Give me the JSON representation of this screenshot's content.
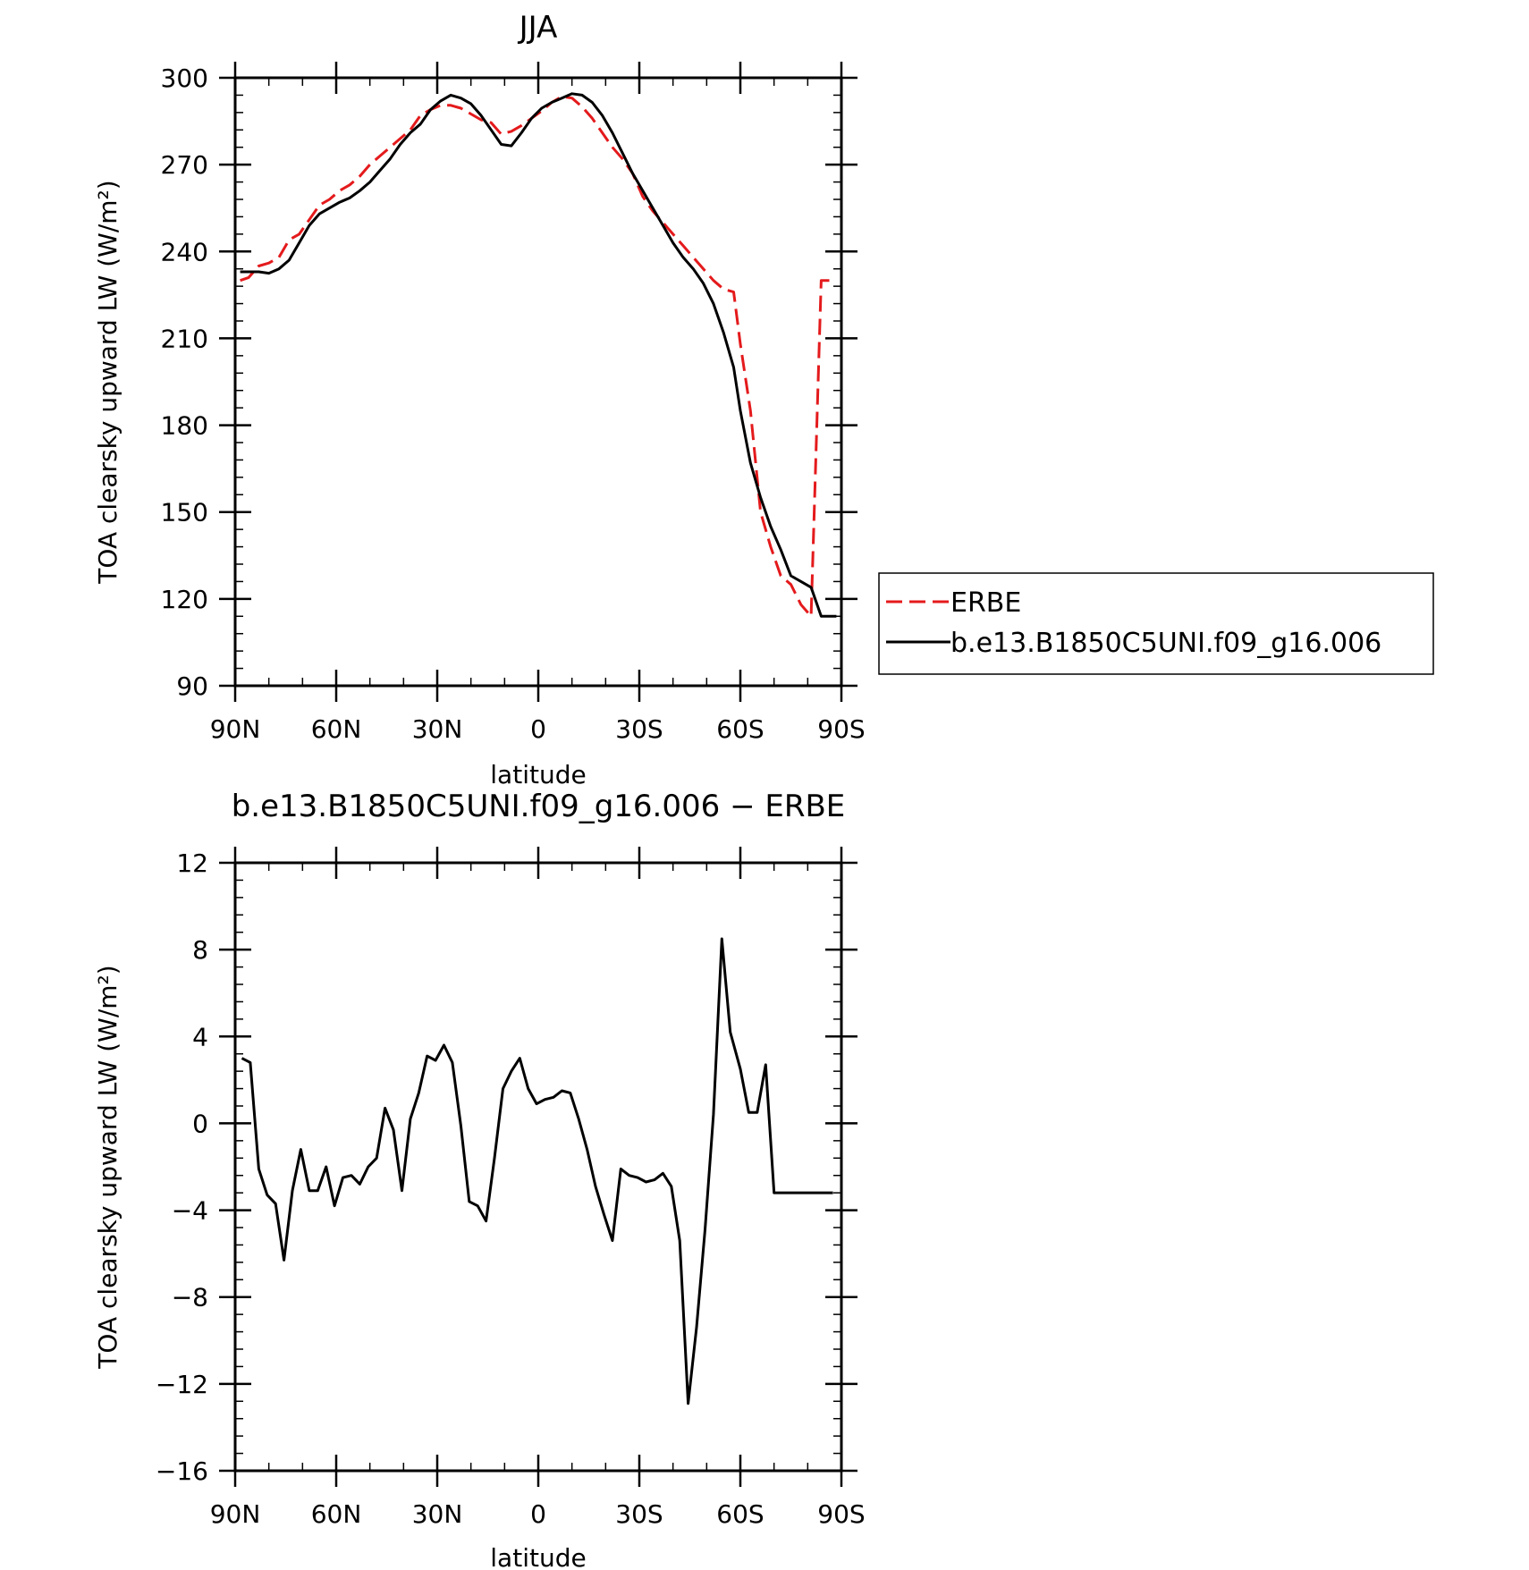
{
  "chart_data": [
    {
      "type": "line",
      "title": "JJA",
      "xlabel": "latitude",
      "ylabel": "TOA clearsky upward LW (W/m²)",
      "xlim": [
        90,
        -90
      ],
      "ylim": [
        90,
        300
      ],
      "xticks": [
        {
          "value": 90,
          "label": "90N"
        },
        {
          "value": 60,
          "label": "60N"
        },
        {
          "value": 30,
          "label": "30N"
        },
        {
          "value": 0,
          "label": "0"
        },
        {
          "value": -30,
          "label": "30S"
        },
        {
          "value": -60,
          "label": "60S"
        },
        {
          "value": -90,
          "label": "90S"
        }
      ],
      "yticks": [
        {
          "value": 300,
          "label": "300"
        },
        {
          "value": 270,
          "label": "270"
        },
        {
          "value": 240,
          "label": "240"
        },
        {
          "value": 210,
          "label": "210"
        },
        {
          "value": 180,
          "label": "180"
        },
        {
          "value": 150,
          "label": "150"
        },
        {
          "value": 120,
          "label": "120"
        },
        {
          "value": 90,
          "label": "90"
        }
      ],
      "legend": {
        "placement": "right"
      },
      "series": [
        {
          "name": "ERBE",
          "color": "#e41a1c",
          "style": "dashed",
          "x": [
            88.5,
            86,
            83,
            80,
            77,
            74,
            71,
            68,
            65,
            62,
            59,
            56,
            53,
            50,
            47,
            44,
            41,
            38,
            35,
            32,
            29,
            26,
            23,
            20,
            17,
            14,
            11,
            8,
            5,
            2,
            -1,
            -4,
            -7,
            -10,
            -13,
            -16,
            -19,
            -22,
            -25,
            -28,
            -31,
            -34,
            -37,
            -40,
            -43,
            -46,
            -49,
            -52,
            -55,
            -58,
            -60,
            -63,
            -66,
            -69,
            -72,
            -75,
            -78,
            -81,
            -84,
            -87,
            -88.5
          ],
          "y": [
            230,
            231,
            235,
            236,
            238,
            244,
            246,
            251,
            256,
            258,
            261,
            263,
            266,
            270,
            273,
            276,
            279,
            282,
            287,
            289,
            290.5,
            290.5,
            289.5,
            287.5,
            285.5,
            284.5,
            280.5,
            281.5,
            283.5,
            286,
            288.5,
            291.5,
            293.5,
            293,
            290,
            286,
            281,
            276,
            272,
            267,
            259,
            254,
            250,
            246,
            242,
            238,
            234,
            230,
            227,
            226,
            208,
            185,
            150,
            138,
            128,
            125,
            118,
            114,
            230,
            230,
            230
          ]
        },
        {
          "name": "b.e13.B1850C5UNI.f09_g16.006",
          "color": "#000000",
          "style": "solid",
          "x": [
            88.5,
            86,
            83,
            80,
            77,
            74,
            71,
            68,
            65,
            62,
            59,
            56,
            53,
            50,
            47,
            44,
            41,
            38,
            35,
            32,
            29,
            26,
            23,
            20,
            17,
            14,
            11,
            8,
            5,
            2,
            -1,
            -4,
            -7,
            -10,
            -13,
            -16,
            -19,
            -22,
            -25,
            -28,
            -31,
            -34,
            -37,
            -40,
            -43,
            -46,
            -49,
            -52,
            -55,
            -58,
            -60,
            -63,
            -66,
            -69,
            -72,
            -75,
            -78,
            -81,
            -84,
            -87,
            -88.5
          ],
          "y": [
            233,
            233,
            233,
            232.5,
            234,
            237,
            243,
            249,
            253,
            255,
            257,
            258.5,
            261,
            264,
            268,
            272,
            277,
            281,
            284,
            289,
            292,
            294,
            293,
            291,
            287,
            282,
            277,
            276.5,
            281,
            286,
            289.5,
            291.5,
            293,
            294.5,
            294,
            291.5,
            287,
            281,
            274,
            267,
            261,
            255,
            249,
            243,
            238,
            234,
            229,
            222,
            212,
            200,
            185,
            167,
            155,
            145,
            137,
            128,
            126,
            124,
            114,
            114,
            114
          ]
        }
      ]
    },
    {
      "type": "line",
      "title": "b.e13.B1850C5UNI.f09_g16.006 − ERBE",
      "xlabel": "latitude",
      "ylabel": "TOA clearsky upward LW (W/m²)",
      "xlim": [
        90,
        -90
      ],
      "ylim": [
        -16,
        12
      ],
      "xticks": [
        {
          "value": 90,
          "label": "90N"
        },
        {
          "value": 60,
          "label": "60N"
        },
        {
          "value": 30,
          "label": "30N"
        },
        {
          "value": 0,
          "label": "0"
        },
        {
          "value": -30,
          "label": "30S"
        },
        {
          "value": -60,
          "label": "60S"
        },
        {
          "value": -90,
          "label": "90S"
        }
      ],
      "yticks": [
        {
          "value": 12,
          "label": "12"
        },
        {
          "value": 8,
          "label": "8"
        },
        {
          "value": 4,
          "label": "4"
        },
        {
          "value": 0,
          "label": "0"
        },
        {
          "value": -4,
          "label": "−4"
        },
        {
          "value": -8,
          "label": "−8"
        },
        {
          "value": -12,
          "label": "−12"
        },
        {
          "value": -16,
          "label": "−16"
        }
      ],
      "series": [
        {
          "color": "#000000",
          "style": "solid",
          "x": [
            88,
            85.5,
            83,
            80.5,
            78,
            75.5,
            73,
            70.5,
            68,
            65.5,
            63,
            60.5,
            58,
            55.5,
            53,
            50.5,
            48,
            45.5,
            43,
            40.5,
            38,
            35.5,
            33,
            30.5,
            28,
            25.5,
            23,
            20.5,
            18,
            15.5,
            13,
            10.5,
            8,
            5.5,
            3,
            0.5,
            -2,
            -4.5,
            -7,
            -9.5,
            -12,
            -14.5,
            -17,
            -19.5,
            -22,
            -24.5,
            -27,
            -29.5,
            -32,
            -34.5,
            -37,
            -39.5,
            -42,
            -44.5,
            -47,
            -49.5,
            -52,
            -54.5,
            -57,
            -60,
            -62.5,
            -65,
            -67.5,
            -70,
            -72.5,
            -75,
            -77.5,
            -80,
            -82.5,
            -85,
            -87.5
          ],
          "y": [
            3,
            2.8,
            -2.1,
            -3.3,
            -3.7,
            -6.3,
            -3.1,
            -1.2,
            -3.1,
            -3.1,
            -2.0,
            -3.8,
            -2.5,
            -2.4,
            -2.8,
            -2.0,
            -1.6,
            0.7,
            -0.3,
            -3.1,
            0.2,
            1.4,
            3.1,
            2.9,
            3.6,
            2.8,
            -0.1,
            -3.6,
            -3.8,
            -4.5,
            -1.6,
            1.6,
            2.4,
            3.0,
            1.6,
            0.9,
            1.1,
            1.2,
            1.5,
            1.4,
            0.2,
            -1.2,
            -2.9,
            -4.2,
            -5.4,
            -2.1,
            -2.4,
            -2.5,
            -2.7,
            -2.6,
            -2.3,
            -2.9,
            -5.4,
            -12.9,
            -9.4,
            -4.9,
            0.4,
            8.5,
            4.2,
            2.5,
            0.5,
            0.5,
            2.7,
            -3.2,
            -3.2,
            -3.2,
            -3.2,
            -3.2,
            -3.2,
            -3.2,
            -3.2
          ]
        }
      ]
    }
  ]
}
